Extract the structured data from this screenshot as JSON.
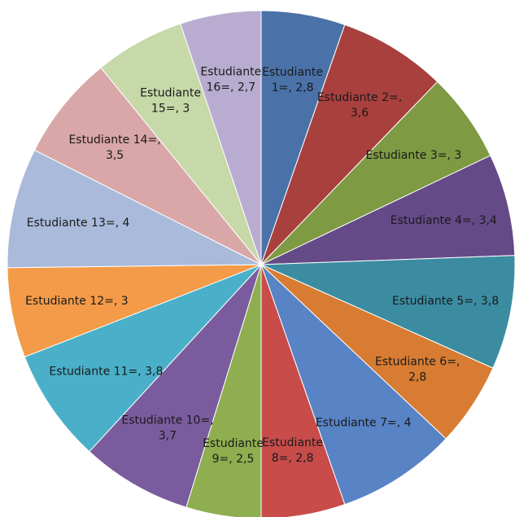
{
  "chart_data": {
    "type": "pie",
    "title": "",
    "start_angle_deg": 0,
    "direction": "clockwise",
    "slices": [
      {
        "label": [
          "Estudiante",
          "1=, 2,8"
        ],
        "value": 2.8,
        "color": "#4a72a8"
      },
      {
        "label": [
          "Estudiante 2=,",
          "3,6"
        ],
        "value": 3.6,
        "color": "#a8403d"
      },
      {
        "label": [
          "Estudiante 3=, 3"
        ],
        "value": 3.0,
        "color": "#7e9a43"
      },
      {
        "label": [
          "Estudiante 4=, 3,4"
        ],
        "value": 3.4,
        "color": "#654a88"
      },
      {
        "label": [
          "Estudiante 5=, 3,8"
        ],
        "value": 3.8,
        "color": "#3b8ca1"
      },
      {
        "label": [
          "Estudiante 6=,",
          "2,8"
        ],
        "value": 2.8,
        "color": "#d77c32"
      },
      {
        "label": [
          "Estudiante 7=, 4"
        ],
        "value": 4.0,
        "color": "#5883c5"
      },
      {
        "label": [
          "Estudiante",
          "8=, 2,8"
        ],
        "value": 2.8,
        "color": "#c74c4a"
      },
      {
        "label": [
          "Estudiante",
          "9=, 2,5"
        ],
        "value": 2.5,
        "color": "#8eae4f"
      },
      {
        "label": [
          "Estudiante 10=,",
          "3,7"
        ],
        "value": 3.7,
        "color": "#7a5c9e"
      },
      {
        "label": [
          "Estudiante 11=, 3,8"
        ],
        "value": 3.8,
        "color": "#4ab0c9"
      },
      {
        "label": [
          "Estudiante 12=, 3"
        ],
        "value": 3.0,
        "color": "#f39b48"
      },
      {
        "label": [
          "Estudiante 13=, 4"
        ],
        "value": 4.0,
        "color": "#a9badb"
      },
      {
        "label": [
          "Estudiante 14=,",
          "3,5"
        ],
        "value": 3.5,
        "color": "#d9a7a7"
      },
      {
        "label": [
          "Estudiante",
          "15=, 3"
        ],
        "value": 3.0,
        "color": "#c7d8a9"
      },
      {
        "label": [
          "Estudiante",
          "16=, 2,7"
        ],
        "value": 2.7,
        "color": "#b8add0"
      }
    ]
  }
}
